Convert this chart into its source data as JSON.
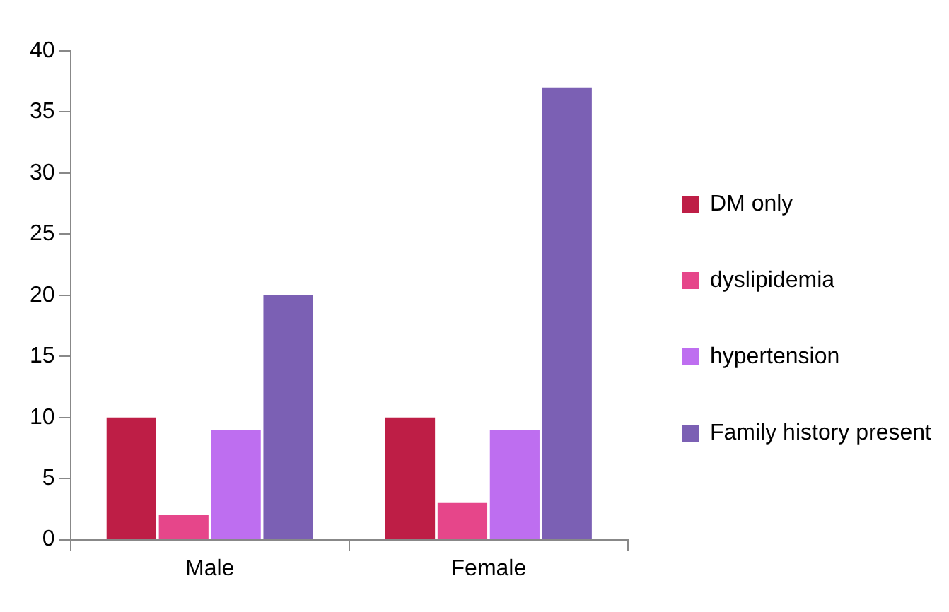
{
  "chart_data": {
    "type": "bar",
    "categories": [
      "Male",
      "Female"
    ],
    "series": [
      {
        "name": "DM only",
        "color": "#be1e46",
        "values": [
          10,
          10
        ]
      },
      {
        "name": "dyslipidemia",
        "color": "#e6468a",
        "values": [
          2,
          3
        ]
      },
      {
        "name": "hypertension",
        "color": "#be6ef0",
        "values": [
          9,
          9
        ]
      },
      {
        "name": "Family history present",
        "color": "#7b60b4",
        "values": [
          20,
          37
        ]
      }
    ],
    "ylim": [
      0,
      40
    ],
    "yticks": [
      0,
      5,
      10,
      15,
      20,
      25,
      30,
      35,
      40
    ],
    "legend": "right"
  }
}
